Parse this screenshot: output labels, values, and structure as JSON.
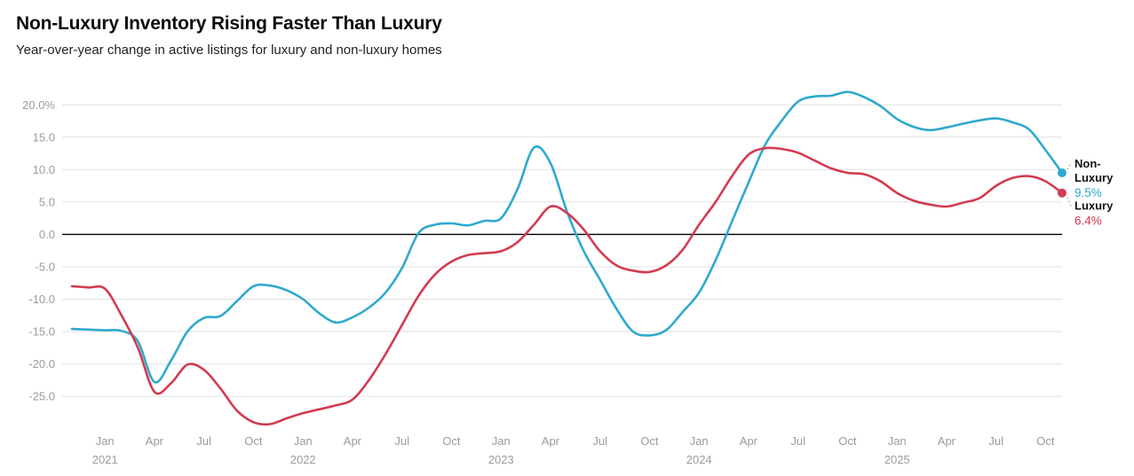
{
  "header": {
    "title": "Non-Luxury Inventory Rising Faster Than Luxury",
    "subtitle": "Year-over-year change in active listings for luxury and non-luxury homes"
  },
  "colors": {
    "non_luxury": "#2fa9cd",
    "luxury": "#d23b50",
    "grid": "#e2e2e2",
    "zero_line": "#000000",
    "tick_text": "#9b9b9b",
    "label_text": "#111111",
    "connector": "#9e9e9e",
    "background": "#ffffff"
  },
  "chart_data": {
    "type": "line",
    "title": "Non-Luxury Inventory Rising Faster Than Luxury",
    "subtitle": "Year-over-year change in active listings for luxury and non-luxury homes",
    "x_start": "Nov 2020",
    "x_end": "Nov 2025",
    "frequency": "monthly",
    "grid": true,
    "zero_line": true,
    "legend_position": "right-end-labels",
    "ylim": [
      -29.5,
      22.5
    ],
    "y_ticks": [
      {
        "value": 20,
        "label": "20.0%"
      },
      {
        "value": 15,
        "label": "15.0"
      },
      {
        "value": 10,
        "label": "10.0"
      },
      {
        "value": 5,
        "label": "5.0"
      },
      {
        "value": 0,
        "label": "0.0"
      },
      {
        "value": -5,
        "label": "-5.0"
      },
      {
        "value": -10,
        "label": "-10.0"
      },
      {
        "value": -15,
        "label": "-15.0"
      },
      {
        "value": -20,
        "label": "-20.0"
      },
      {
        "value": -25,
        "label": "-25.0"
      }
    ],
    "first_tick_month_index": 2,
    "tick_interval_months": 3,
    "x_ticks": [
      {
        "label": "Jan",
        "year": "2021"
      },
      {
        "label": "Apr"
      },
      {
        "label": "Jul"
      },
      {
        "label": "Oct"
      },
      {
        "label": "Jan",
        "year": "2022"
      },
      {
        "label": "Apr"
      },
      {
        "label": "Jul"
      },
      {
        "label": "Oct"
      },
      {
        "label": "Jan",
        "year": "2023"
      },
      {
        "label": "Apr"
      },
      {
        "label": "Jul"
      },
      {
        "label": "Oct"
      },
      {
        "label": "Jan",
        "year": "2024"
      },
      {
        "label": "Apr"
      },
      {
        "label": "Jul"
      },
      {
        "label": "Oct"
      },
      {
        "label": "Jan",
        "year": "2025"
      },
      {
        "label": "Apr"
      },
      {
        "label": "Jul"
      },
      {
        "label": "Oct"
      }
    ],
    "series": [
      {
        "name": "Non-Luxury",
        "color": "#2fa9cd",
        "latest_label": "9.5%",
        "label_lines": [
          "Non-",
          "Luxury"
        ],
        "values": [
          -14.6,
          -14.7,
          -14.8,
          -14.9,
          -16.5,
          -22.8,
          -19.5,
          -15.0,
          -12.9,
          -12.6,
          -10.3,
          -8.0,
          -7.9,
          -8.6,
          -10.0,
          -12.2,
          -13.6,
          -12.8,
          -11.3,
          -9.0,
          -5.2,
          0.2,
          1.5,
          1.7,
          1.4,
          2.1,
          2.5,
          7.0,
          13.4,
          11.0,
          3.5,
          -2.5,
          -7.0,
          -11.5,
          -15.0,
          -15.6,
          -14.8,
          -12.0,
          -9.0,
          -4.0,
          2.0,
          8.0,
          13.8,
          17.5,
          20.5,
          21.3,
          21.4,
          22.0,
          21.2,
          19.8,
          17.8,
          16.6,
          16.1,
          16.5,
          17.1,
          17.6,
          17.9,
          17.3,
          16.2,
          13.0,
          9.5
        ]
      },
      {
        "name": "Luxury",
        "color": "#d23b50",
        "latest_label": "6.4%",
        "label_lines": [
          "Luxury"
        ],
        "values": [
          -8.0,
          -8.2,
          -8.4,
          -12.5,
          -17.5,
          -24.3,
          -23.0,
          -20.1,
          -20.9,
          -23.8,
          -27.2,
          -29.0,
          -29.3,
          -28.4,
          -27.6,
          -27.0,
          -26.4,
          -25.5,
          -22.5,
          -18.5,
          -14.0,
          -9.5,
          -6.2,
          -4.2,
          -3.2,
          -2.9,
          -2.6,
          -1.2,
          1.5,
          4.3,
          3.3,
          0.8,
          -2.6,
          -4.8,
          -5.6,
          -5.8,
          -4.8,
          -2.4,
          1.5,
          5.0,
          9.0,
          12.3,
          13.3,
          13.2,
          12.6,
          11.4,
          10.2,
          9.5,
          9.3,
          8.2,
          6.4,
          5.2,
          4.6,
          4.3,
          4.9,
          5.6,
          7.5,
          8.7,
          9.0,
          8.2,
          6.4
        ]
      }
    ]
  }
}
